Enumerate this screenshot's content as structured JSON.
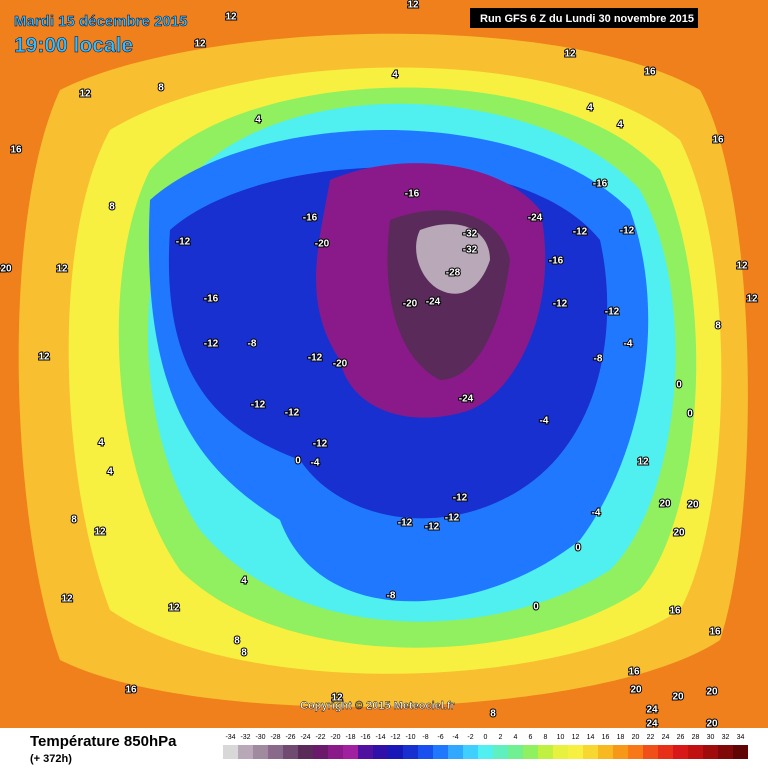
{
  "header": {
    "date": "Mardi 15 décembre 2015",
    "time": "19:00 locale",
    "run": "Run GFS 6 Z du Lundi 30 novembre 2015"
  },
  "copyright": "Copyright © 2015 Meteociel.fr",
  "legend": {
    "title": "Température 850hPa",
    "lead": "(+ 372h)",
    "ticks": [
      -34,
      -32,
      -30,
      -28,
      -26,
      -24,
      -22,
      -20,
      -18,
      -16,
      -14,
      -12,
      -10,
      -8,
      -6,
      -4,
      -2,
      0,
      2,
      4,
      6,
      8,
      10,
      12,
      14,
      16,
      18,
      20,
      22,
      24,
      26,
      28,
      30,
      32,
      34
    ],
    "colors": [
      "#d8d8d8",
      "#b8a8b8",
      "#a08aa0",
      "#8a6a8a",
      "#704a70",
      "#5a2a5a",
      "#6a1a6a",
      "#8a1a8a",
      "#a020a0",
      "#5010a0",
      "#3010a8",
      "#1818b8",
      "#1830d0",
      "#1850f0",
      "#2078ff",
      "#30a8ff",
      "#40d0ff",
      "#50f0f0",
      "#60f0c0",
      "#70f090",
      "#90f060",
      "#c0f040",
      "#e8f040",
      "#f8f040",
      "#f8d830",
      "#f8b820",
      "#f89818",
      "#f87818",
      "#f05018",
      "#e83018",
      "#d81818",
      "#c01010",
      "#a00c0c",
      "#800808",
      "#600404"
    ]
  },
  "map_labels": [
    12,
    12,
    12,
    12,
    16,
    8,
    12,
    4,
    4,
    4,
    4,
    16,
    16,
    -16,
    -16,
    -16,
    -20,
    -24,
    -32,
    -32,
    -28,
    -24,
    -20,
    -12,
    -12,
    -16,
    -12,
    -16,
    -12,
    -8,
    -12,
    -20,
    -24,
    -12,
    -12,
    -8,
    -4,
    0,
    12,
    20,
    12,
    8,
    12,
    4,
    4,
    -12,
    -12,
    -12,
    -4,
    0,
    -12,
    -12,
    -12,
    -12,
    -8,
    -4,
    -4,
    0,
    0,
    4,
    12,
    8,
    12,
    8,
    8,
    12,
    16,
    12,
    8,
    16,
    20,
    20,
    20,
    24,
    24,
    20,
    12,
    16,
    16,
    20,
    20,
    20,
    8,
    12,
    0
  ]
}
